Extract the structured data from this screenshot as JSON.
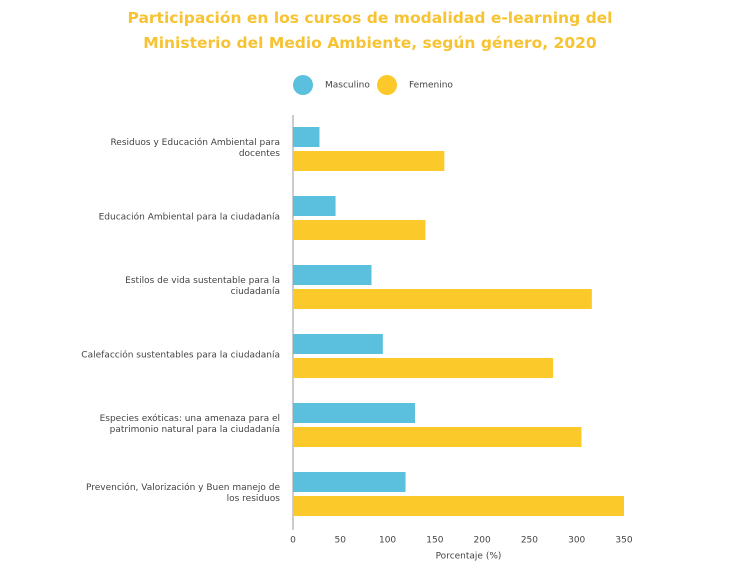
{
  "chart_data": {
    "type": "bar",
    "orientation": "horizontal",
    "title": "Participación en los cursos de modalidad e-learning  del Ministerio del Medio Ambiente, según género, 2020",
    "categories": [
      "Residuos y Educación Ambiental para docentes",
      "Educación Ambiental para la ciudadanía",
      "Estilos de vida sustentable para la ciudadanía",
      "Calefacción sustentables para la ciudadanía",
      "Especies exóticas: una amenaza para el patrimonio natural para la ciudadanía",
      "Prevención, Valorización y Buen manejo de los residuos"
    ],
    "series": [
      {
        "name": "Masculino",
        "color": "#5bc0de",
        "values": [
          28,
          45,
          83,
          95,
          129,
          119
        ]
      },
      {
        "name": "Femenino",
        "color": "#fcc92b",
        "values": [
          160,
          140,
          316,
          275,
          305,
          350
        ]
      }
    ],
    "xlim": [
      0,
      350
    ],
    "xticks": [
      0,
      50,
      100,
      150,
      200,
      250,
      300,
      350
    ],
    "xlabel": "Porcentaje (%)",
    "legend": "top"
  }
}
